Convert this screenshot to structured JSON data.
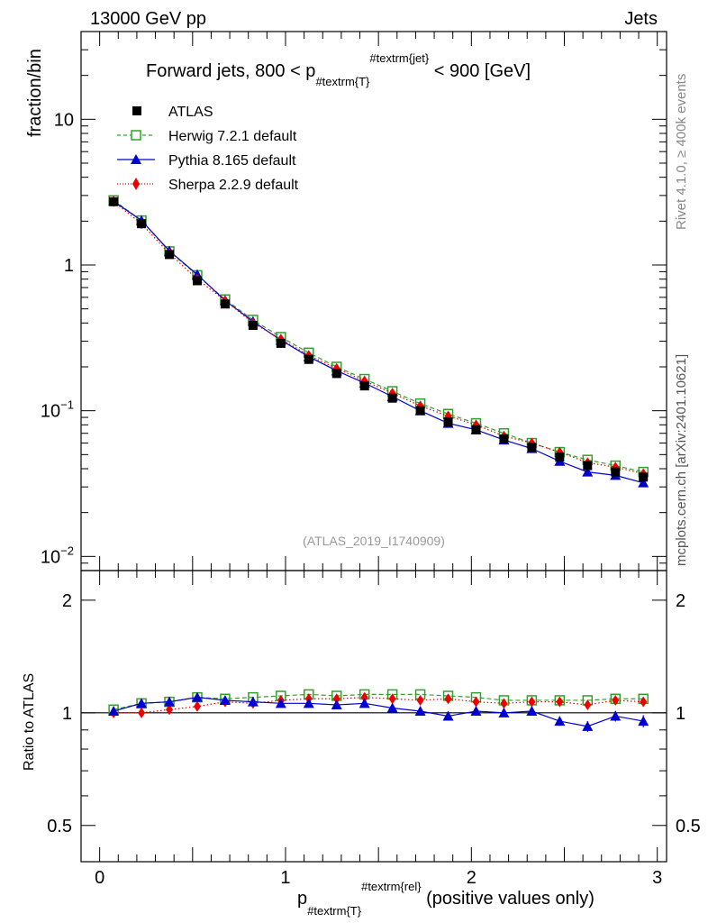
{
  "header": {
    "left": "13000 GeV pp",
    "right": "Jets"
  },
  "side_labels": {
    "rivet": "Rivet 4.1.0, ≥ 400k events",
    "mcplots": "mcplots.cern.ch [arXiv:2401.10621]"
  },
  "watermark": "(ATLAS_2019_I1740909)",
  "colors": {
    "atlas": "#000000",
    "herwig": "#33a02c",
    "pythia": "#0000cc",
    "sherpa": "#ee0000"
  },
  "chart_data": [
    {
      "type": "line",
      "panel": "main",
      "title": "Forward jets, 800 < p",
      "title_sub": "#textrm{T}",
      "title_sup": "#textrm{jet}",
      "title_suffix": " < 900 [GeV]",
      "ylabel": "fraction/bin",
      "yscale": "log",
      "ylim": [
        0.008,
        40
      ],
      "xlim": [
        -0.1,
        3.05
      ],
      "y_ticks": [
        {
          "value": 10,
          "label": "10"
        },
        {
          "value": 1,
          "label": "1"
        },
        {
          "value": 0.1,
          "base": "10",
          "exp": "−1"
        },
        {
          "value": 0.01,
          "base": "10",
          "exp": "−2"
        }
      ],
      "x": [
        0.075,
        0.225,
        0.375,
        0.525,
        0.675,
        0.825,
        0.975,
        1.125,
        1.275,
        1.425,
        1.575,
        1.725,
        1.875,
        2.025,
        2.175,
        2.325,
        2.475,
        2.625,
        2.775,
        2.925
      ],
      "series": [
        {
          "name": "ATLAS",
          "style": "data",
          "values": [
            2.72,
            1.92,
            1.18,
            0.78,
            0.54,
            0.385,
            0.29,
            0.225,
            0.18,
            0.148,
            0.122,
            0.1,
            0.084,
            0.074,
            0.064,
            0.056,
            0.048,
            0.042,
            0.038,
            0.035
          ]
        },
        {
          "name": "Herwig 7.2.1 default",
          "style": "herwig",
          "values": [
            2.78,
            2.02,
            1.24,
            0.85,
            0.58,
            0.42,
            0.32,
            0.25,
            0.2,
            0.165,
            0.136,
            0.112,
            0.095,
            0.082,
            0.07,
            0.06,
            0.052,
            0.046,
            0.042,
            0.038
          ]
        },
        {
          "name": "Pythia 8.165 default",
          "style": "pythia",
          "values": [
            2.74,
            2.02,
            1.25,
            0.86,
            0.57,
            0.41,
            0.305,
            0.235,
            0.188,
            0.155,
            0.125,
            0.1,
            0.082,
            0.074,
            0.063,
            0.055,
            0.045,
            0.038,
            0.036,
            0.032
          ]
        },
        {
          "name": "Sherpa 2.2.9 default",
          "style": "sherpa",
          "values": [
            2.72,
            1.92,
            1.2,
            0.8,
            0.57,
            0.4,
            0.31,
            0.24,
            0.195,
            0.16,
            0.132,
            0.108,
            0.092,
            0.08,
            0.067,
            0.06,
            0.052,
            0.044,
            0.041,
            0.037
          ]
        }
      ]
    },
    {
      "type": "line",
      "panel": "ratio",
      "ylabel": "Ratio to ATLAS",
      "yscale": "log",
      "ylim": [
        0.4,
        2.4
      ],
      "xlim": [
        -0.1,
        3.05
      ],
      "y_ticks": [
        {
          "value": 2,
          "label": "2"
        },
        {
          "value": 1,
          "label": "1"
        },
        {
          "value": 0.5,
          "label": "0.5"
        }
      ],
      "x_ticks": [
        {
          "value": 0,
          "label": "0"
        },
        {
          "value": 1,
          "label": "1"
        },
        {
          "value": 2,
          "label": "2"
        },
        {
          "value": 3,
          "label": "3"
        }
      ],
      "xlabel": "p",
      "xlabel_sub": "#textrm{T}",
      "xlabel_sup": "#textrm{rel}",
      "xlabel_suffix": " (positive values only)",
      "x": [
        0.075,
        0.225,
        0.375,
        0.525,
        0.675,
        0.825,
        0.975,
        1.125,
        1.275,
        1.425,
        1.575,
        1.725,
        1.875,
        2.025,
        2.175,
        2.325,
        2.475,
        2.625,
        2.775,
        2.925
      ],
      "series": [
        {
          "name": "Herwig 7.2.1 default",
          "style": "herwig",
          "values": [
            1.02,
            1.06,
            1.07,
            1.1,
            1.09,
            1.1,
            1.11,
            1.12,
            1.11,
            1.12,
            1.12,
            1.12,
            1.11,
            1.1,
            1.08,
            1.08,
            1.08,
            1.08,
            1.09,
            1.09
          ]
        },
        {
          "name": "Pythia 8.165 default",
          "style": "pythia",
          "values": [
            1.01,
            1.06,
            1.07,
            1.1,
            1.08,
            1.07,
            1.06,
            1.06,
            1.05,
            1.06,
            1.03,
            1.01,
            0.98,
            1.01,
            1.0,
            1.01,
            0.95,
            0.92,
            0.98,
            0.95
          ],
          "errors": [
            0.005,
            0.006,
            0.006,
            0.008,
            0.008,
            0.008,
            0.009,
            0.01,
            0.012,
            0.013,
            0.015,
            0.017,
            0.019,
            0.02,
            0.022,
            0.024,
            0.027,
            0.03,
            0.032,
            0.035
          ]
        },
        {
          "name": "Sherpa 2.2.9 default",
          "style": "sherpa",
          "values": [
            1.0,
            1.0,
            1.02,
            1.04,
            1.07,
            1.06,
            1.08,
            1.09,
            1.09,
            1.1,
            1.09,
            1.08,
            1.09,
            1.07,
            1.06,
            1.07,
            1.07,
            1.05,
            1.08,
            1.07
          ]
        }
      ]
    }
  ]
}
